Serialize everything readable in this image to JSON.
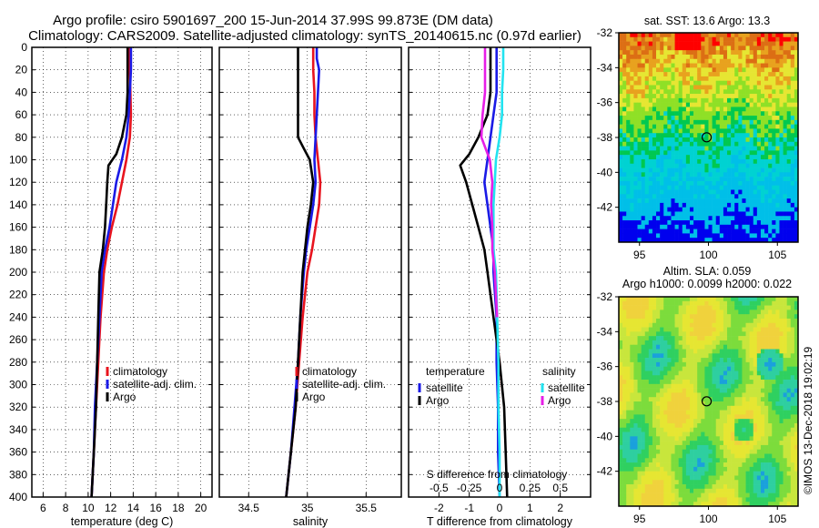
{
  "header": {
    "title_line1": "Argo profile: csiro 5901697_200 15-Jun-2014 37.99S 99.873E (DM data)",
    "title_line2": "Climatology: CARS2009. Satellite-adjusted climatology: synTS_20140615.nc (0.97d earlier)"
  },
  "colors": {
    "climatology": "#e8141e",
    "satellite_adj": "#1a1ae6",
    "argo": "#000000",
    "salinity_sat": "#22e3f0",
    "salinity_argo": "#e61ee6"
  },
  "chart_data": [
    {
      "type": "line",
      "id": "temperature",
      "xlabel": "temperature (deg C)",
      "xlim": [
        5,
        21
      ],
      "xticks": [
        6,
        8,
        10,
        12,
        14,
        16,
        18,
        20
      ],
      "ylim": [
        400,
        0
      ],
      "yticks": [
        0,
        20,
        40,
        60,
        80,
        100,
        120,
        140,
        160,
        180,
        200,
        220,
        240,
        260,
        280,
        300,
        320,
        340,
        360,
        380,
        400
      ],
      "legend": [
        "climatology",
        "satellite-adj. clim.",
        "Argo"
      ],
      "series": [
        {
          "name": "climatology",
          "color": "#e8141e",
          "points": [
            [
              13.7,
              0
            ],
            [
              13.7,
              20
            ],
            [
              13.75,
              40
            ],
            [
              13.8,
              60
            ],
            [
              13.7,
              80
            ],
            [
              13.4,
              100
            ],
            [
              13.0,
              120
            ],
            [
              12.6,
              140
            ],
            [
              12.1,
              160
            ],
            [
              11.7,
              180
            ],
            [
              11.4,
              200
            ],
            [
              11.1,
              240
            ],
            [
              10.9,
              280
            ],
            [
              10.7,
              320
            ],
            [
              10.5,
              360
            ],
            [
              10.3,
              400
            ]
          ]
        },
        {
          "name": "satellite-adj. clim.",
          "color": "#1a1ae6",
          "points": [
            [
              13.8,
              0
            ],
            [
              13.8,
              20
            ],
            [
              13.7,
              40
            ],
            [
              13.6,
              60
            ],
            [
              13.4,
              80
            ],
            [
              13.0,
              100
            ],
            [
              12.5,
              120
            ],
            [
              12.2,
              140
            ],
            [
              11.9,
              160
            ],
            [
              11.5,
              180
            ],
            [
              11.2,
              200
            ],
            [
              11.0,
              240
            ],
            [
              10.8,
              280
            ],
            [
              10.6,
              320
            ],
            [
              10.5,
              360
            ],
            [
              10.3,
              400
            ]
          ]
        },
        {
          "name": "Argo",
          "color": "#000000",
          "points": [
            [
              13.5,
              0
            ],
            [
              13.5,
              20
            ],
            [
              13.5,
              40
            ],
            [
              13.4,
              60
            ],
            [
              13.0,
              80
            ],
            [
              12.5,
              95
            ],
            [
              11.8,
              105
            ],
            [
              11.7,
              120
            ],
            [
              11.6,
              140
            ],
            [
              11.5,
              160
            ],
            [
              11.3,
              180
            ],
            [
              11.0,
              200
            ],
            [
              10.9,
              240
            ],
            [
              10.8,
              280
            ],
            [
              10.7,
              320
            ],
            [
              10.5,
              360
            ],
            [
              10.3,
              400
            ]
          ]
        }
      ]
    },
    {
      "type": "line",
      "id": "salinity",
      "xlabel": "salinity",
      "xlim": [
        34.25,
        35.8
      ],
      "xticks": [
        34.5,
        35,
        35.5
      ],
      "xticklabels": [
        "34.5",
        "35",
        "35.5"
      ],
      "ylim": [
        400,
        0
      ],
      "legend": [
        "climatology",
        "satellite-adj. clim.",
        "Argo"
      ],
      "series": [
        {
          "name": "climatology",
          "color": "#e8141e",
          "points": [
            [
              35.05,
              0
            ],
            [
              35.05,
              20
            ],
            [
              35.06,
              40
            ],
            [
              35.06,
              60
            ],
            [
              35.07,
              80
            ],
            [
              35.09,
              100
            ],
            [
              35.11,
              120
            ],
            [
              35.1,
              140
            ],
            [
              35.07,
              160
            ],
            [
              35.04,
              180
            ],
            [
              35.0,
              200
            ],
            [
              34.96,
              240
            ],
            [
              34.93,
              280
            ],
            [
              34.9,
              320
            ],
            [
              34.86,
              360
            ],
            [
              34.82,
              400
            ]
          ]
        },
        {
          "name": "satellite-adj. clim.",
          "color": "#1a1ae6",
          "points": [
            [
              35.08,
              0
            ],
            [
              35.08,
              10
            ],
            [
              35.1,
              20
            ],
            [
              35.09,
              40
            ],
            [
              35.08,
              60
            ],
            [
              35.07,
              80
            ],
            [
              35.06,
              100
            ],
            [
              35.07,
              120
            ],
            [
              35.05,
              140
            ],
            [
              35.02,
              160
            ],
            [
              34.99,
              180
            ],
            [
              34.97,
              200
            ],
            [
              34.94,
              240
            ],
            [
              34.92,
              280
            ],
            [
              34.89,
              320
            ],
            [
              34.86,
              360
            ],
            [
              34.82,
              400
            ]
          ]
        },
        {
          "name": "Argo",
          "color": "#000000",
          "points": [
            [
              34.92,
              0
            ],
            [
              34.92,
              20
            ],
            [
              34.92,
              40
            ],
            [
              34.92,
              60
            ],
            [
              34.92,
              80
            ],
            [
              34.97,
              90
            ],
            [
              35.02,
              100
            ],
            [
              35.05,
              120
            ],
            [
              35.03,
              140
            ],
            [
              35.0,
              160
            ],
            [
              34.98,
              180
            ],
            [
              34.96,
              200
            ],
            [
              34.94,
              240
            ],
            [
              34.92,
              280
            ],
            [
              34.9,
              320
            ],
            [
              34.86,
              360
            ],
            [
              34.82,
              400
            ]
          ]
        }
      ]
    },
    {
      "type": "line",
      "id": "difference",
      "xlabel": "T difference from climatology",
      "xlabel2": "S difference from climatology",
      "xlim": [
        -3,
        3
      ],
      "xticks": [
        -2,
        -1,
        0,
        1,
        2
      ],
      "xticks2": [
        -0.5,
        -0.25,
        0,
        0.25,
        0.5
      ],
      "xticklabels2": [
        "-0.5",
        "-0.25",
        "0",
        "0.25",
        "0.5"
      ],
      "s_scale": 0.25,
      "ylim": [
        400,
        0
      ],
      "legend_temperature_title": "temperature",
      "legend_salinity_title": "salinity",
      "legend_temperature": [
        "satellite",
        "Argo"
      ],
      "legend_salinity": [
        "satellite",
        "Argo"
      ],
      "series": [
        {
          "name": "T satellite",
          "color": "#1a1ae6",
          "points": [
            [
              -0.1,
              0
            ],
            [
              -0.1,
              20
            ],
            [
              -0.1,
              40
            ],
            [
              -0.2,
              60
            ],
            [
              -0.3,
              80
            ],
            [
              -0.4,
              100
            ],
            [
              -0.5,
              120
            ],
            [
              -0.4,
              140
            ],
            [
              -0.3,
              160
            ],
            [
              -0.2,
              180
            ],
            [
              -0.2,
              200
            ],
            [
              -0.1,
              240
            ],
            [
              -0.1,
              280
            ],
            [
              -0.05,
              320
            ],
            [
              -0.05,
              360
            ],
            [
              0,
              400
            ]
          ]
        },
        {
          "name": "T Argo",
          "color": "#000000",
          "points": [
            [
              -0.3,
              0
            ],
            [
              -0.3,
              20
            ],
            [
              -0.3,
              40
            ],
            [
              -0.4,
              60
            ],
            [
              -0.7,
              80
            ],
            [
              -1.0,
              95
            ],
            [
              -1.3,
              105
            ],
            [
              -1.1,
              120
            ],
            [
              -0.9,
              140
            ],
            [
              -0.7,
              160
            ],
            [
              -0.5,
              180
            ],
            [
              -0.4,
              200
            ],
            [
              -0.2,
              240
            ],
            [
              0.0,
              280
            ],
            [
              0.15,
              320
            ],
            [
              0.2,
              360
            ],
            [
              0.25,
              400
            ]
          ]
        },
        {
          "name": "S satellite",
          "color": "#22e3f0",
          "points": [
            [
              0.03,
              0
            ],
            [
              0.03,
              20
            ],
            [
              0.02,
              40
            ],
            [
              0.02,
              60
            ],
            [
              0.0,
              80
            ],
            [
              -0.03,
              100
            ],
            [
              -0.04,
              120
            ],
            [
              -0.05,
              140
            ],
            [
              -0.05,
              160
            ],
            [
              -0.05,
              180
            ],
            [
              -0.03,
              200
            ],
            [
              -0.02,
              240
            ],
            [
              -0.01,
              280
            ],
            [
              -0.01,
              320
            ],
            [
              0.0,
              360
            ],
            [
              0.0,
              400
            ]
          ]
        },
        {
          "name": "S Argo",
          "color": "#e61ee6",
          "points": [
            [
              -0.12,
              0
            ],
            [
              -0.12,
              20
            ],
            [
              -0.12,
              40
            ],
            [
              -0.14,
              60
            ],
            [
              -0.15,
              80
            ],
            [
              -0.08,
              100
            ],
            [
              -0.06,
              120
            ],
            [
              -0.07,
              140
            ],
            [
              -0.06,
              160
            ],
            [
              -0.06,
              180
            ],
            [
              -0.04,
              200
            ],
            [
              -0.02,
              240
            ]
          ]
        }
      ]
    },
    {
      "type": "heatmap",
      "id": "sst_map",
      "title": "sat. SST: 13.6 Argo: 13.3",
      "xlim": [
        93.5,
        106.5
      ],
      "ylim": [
        -44,
        -32
      ],
      "xticks": [
        95,
        100,
        105
      ],
      "yticks": [
        -32,
        -34,
        -36,
        -38,
        -40,
        -42
      ],
      "argo_position": [
        99.873,
        -37.99
      ]
    },
    {
      "type": "heatmap",
      "id": "sla_map",
      "title": "Altim. SLA: 0.059",
      "subtitle": "Argo h1000: 0.0099 h2000: 0.022",
      "xlim": [
        93.5,
        106.5
      ],
      "ylim": [
        -44,
        -32
      ],
      "xticks": [
        95,
        100,
        105
      ],
      "yticks": [
        -32,
        -34,
        -36,
        -38,
        -40,
        -42
      ],
      "argo_position": [
        99.873,
        -37.99
      ]
    }
  ],
  "footer": {
    "credit": "©IMOS 13-Dec-2018 19:02:19"
  }
}
